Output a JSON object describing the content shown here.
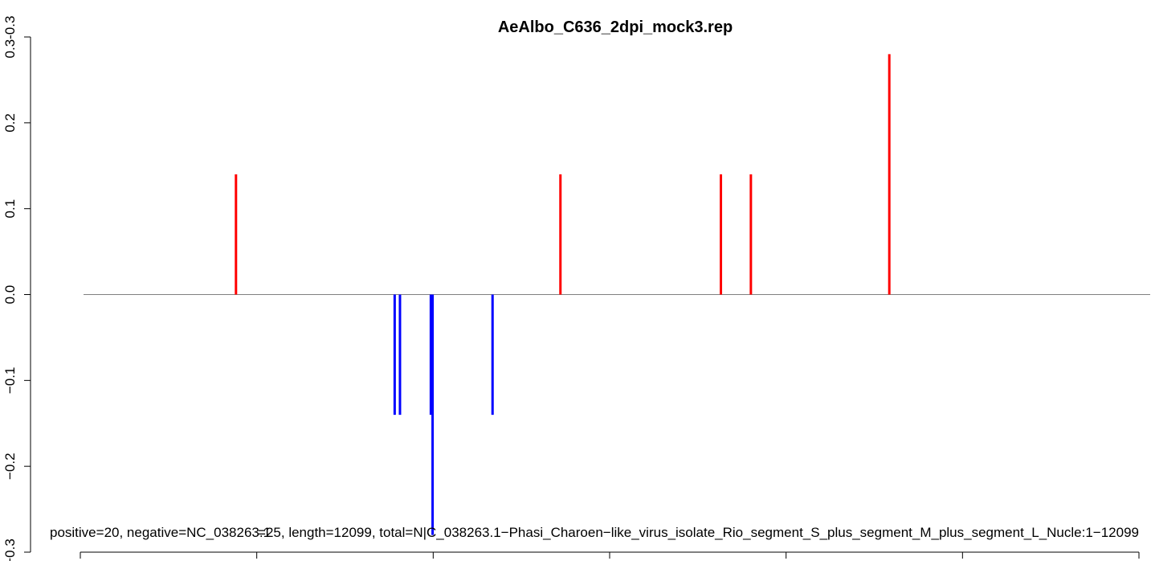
{
  "chart_data": {
    "type": "bar",
    "title": "AeAlbo_C636_2dpi_mock3.rep",
    "subtitles": [
      "=25, length=12099, total=N|C_038263.1−Phasi_Charoen−like_virus_isolate_Rio_segment_S_plus_segment_M_plus_segment_L_Nucle:1−12099",
      "positive=20, negative=NC_038263.1"
    ],
    "xlabel": "",
    "ylabel": "",
    "ylim": [
      -0.3,
      0.3
    ],
    "xlim": [
      1,
      12099
    ],
    "y_ticks": [
      -0.3,
      -0.2,
      -0.1,
      0.0,
      0.1,
      0.2,
      0.3
    ],
    "y_tick_labels": [
      "−0.3",
      "−0.2",
      "−0.1",
      "0.0",
      "0.1",
      "0.2",
      "0.3"
    ],
    "y_top_overlap_label": "0.3-0.3",
    "baseline": 0,
    "grid": false,
    "legend": "none",
    "colors": {
      "positive": "#ff0000",
      "negative": "#0000ff",
      "baseline": "#808080",
      "axis": "#000000"
    },
    "series": [
      {
        "name": "positive",
        "color": "#ff0000",
        "points": [
          {
            "x": 1730,
            "y": 0.14
          },
          {
            "x": 5410,
            "y": 0.14
          },
          {
            "x": 7230,
            "y": 0.14
          },
          {
            "x": 7570,
            "y": 0.14
          },
          {
            "x": 9140,
            "y": 0.28
          }
        ]
      },
      {
        "name": "negative",
        "color": "#0000ff",
        "points": [
          {
            "x": 3530,
            "y": -0.14
          },
          {
            "x": 3590,
            "y": -0.14
          },
          {
            "x": 3940,
            "y": -0.14
          },
          {
            "x": 3960,
            "y": -0.28
          },
          {
            "x": 4640,
            "y": -0.14
          }
        ]
      }
    ]
  }
}
